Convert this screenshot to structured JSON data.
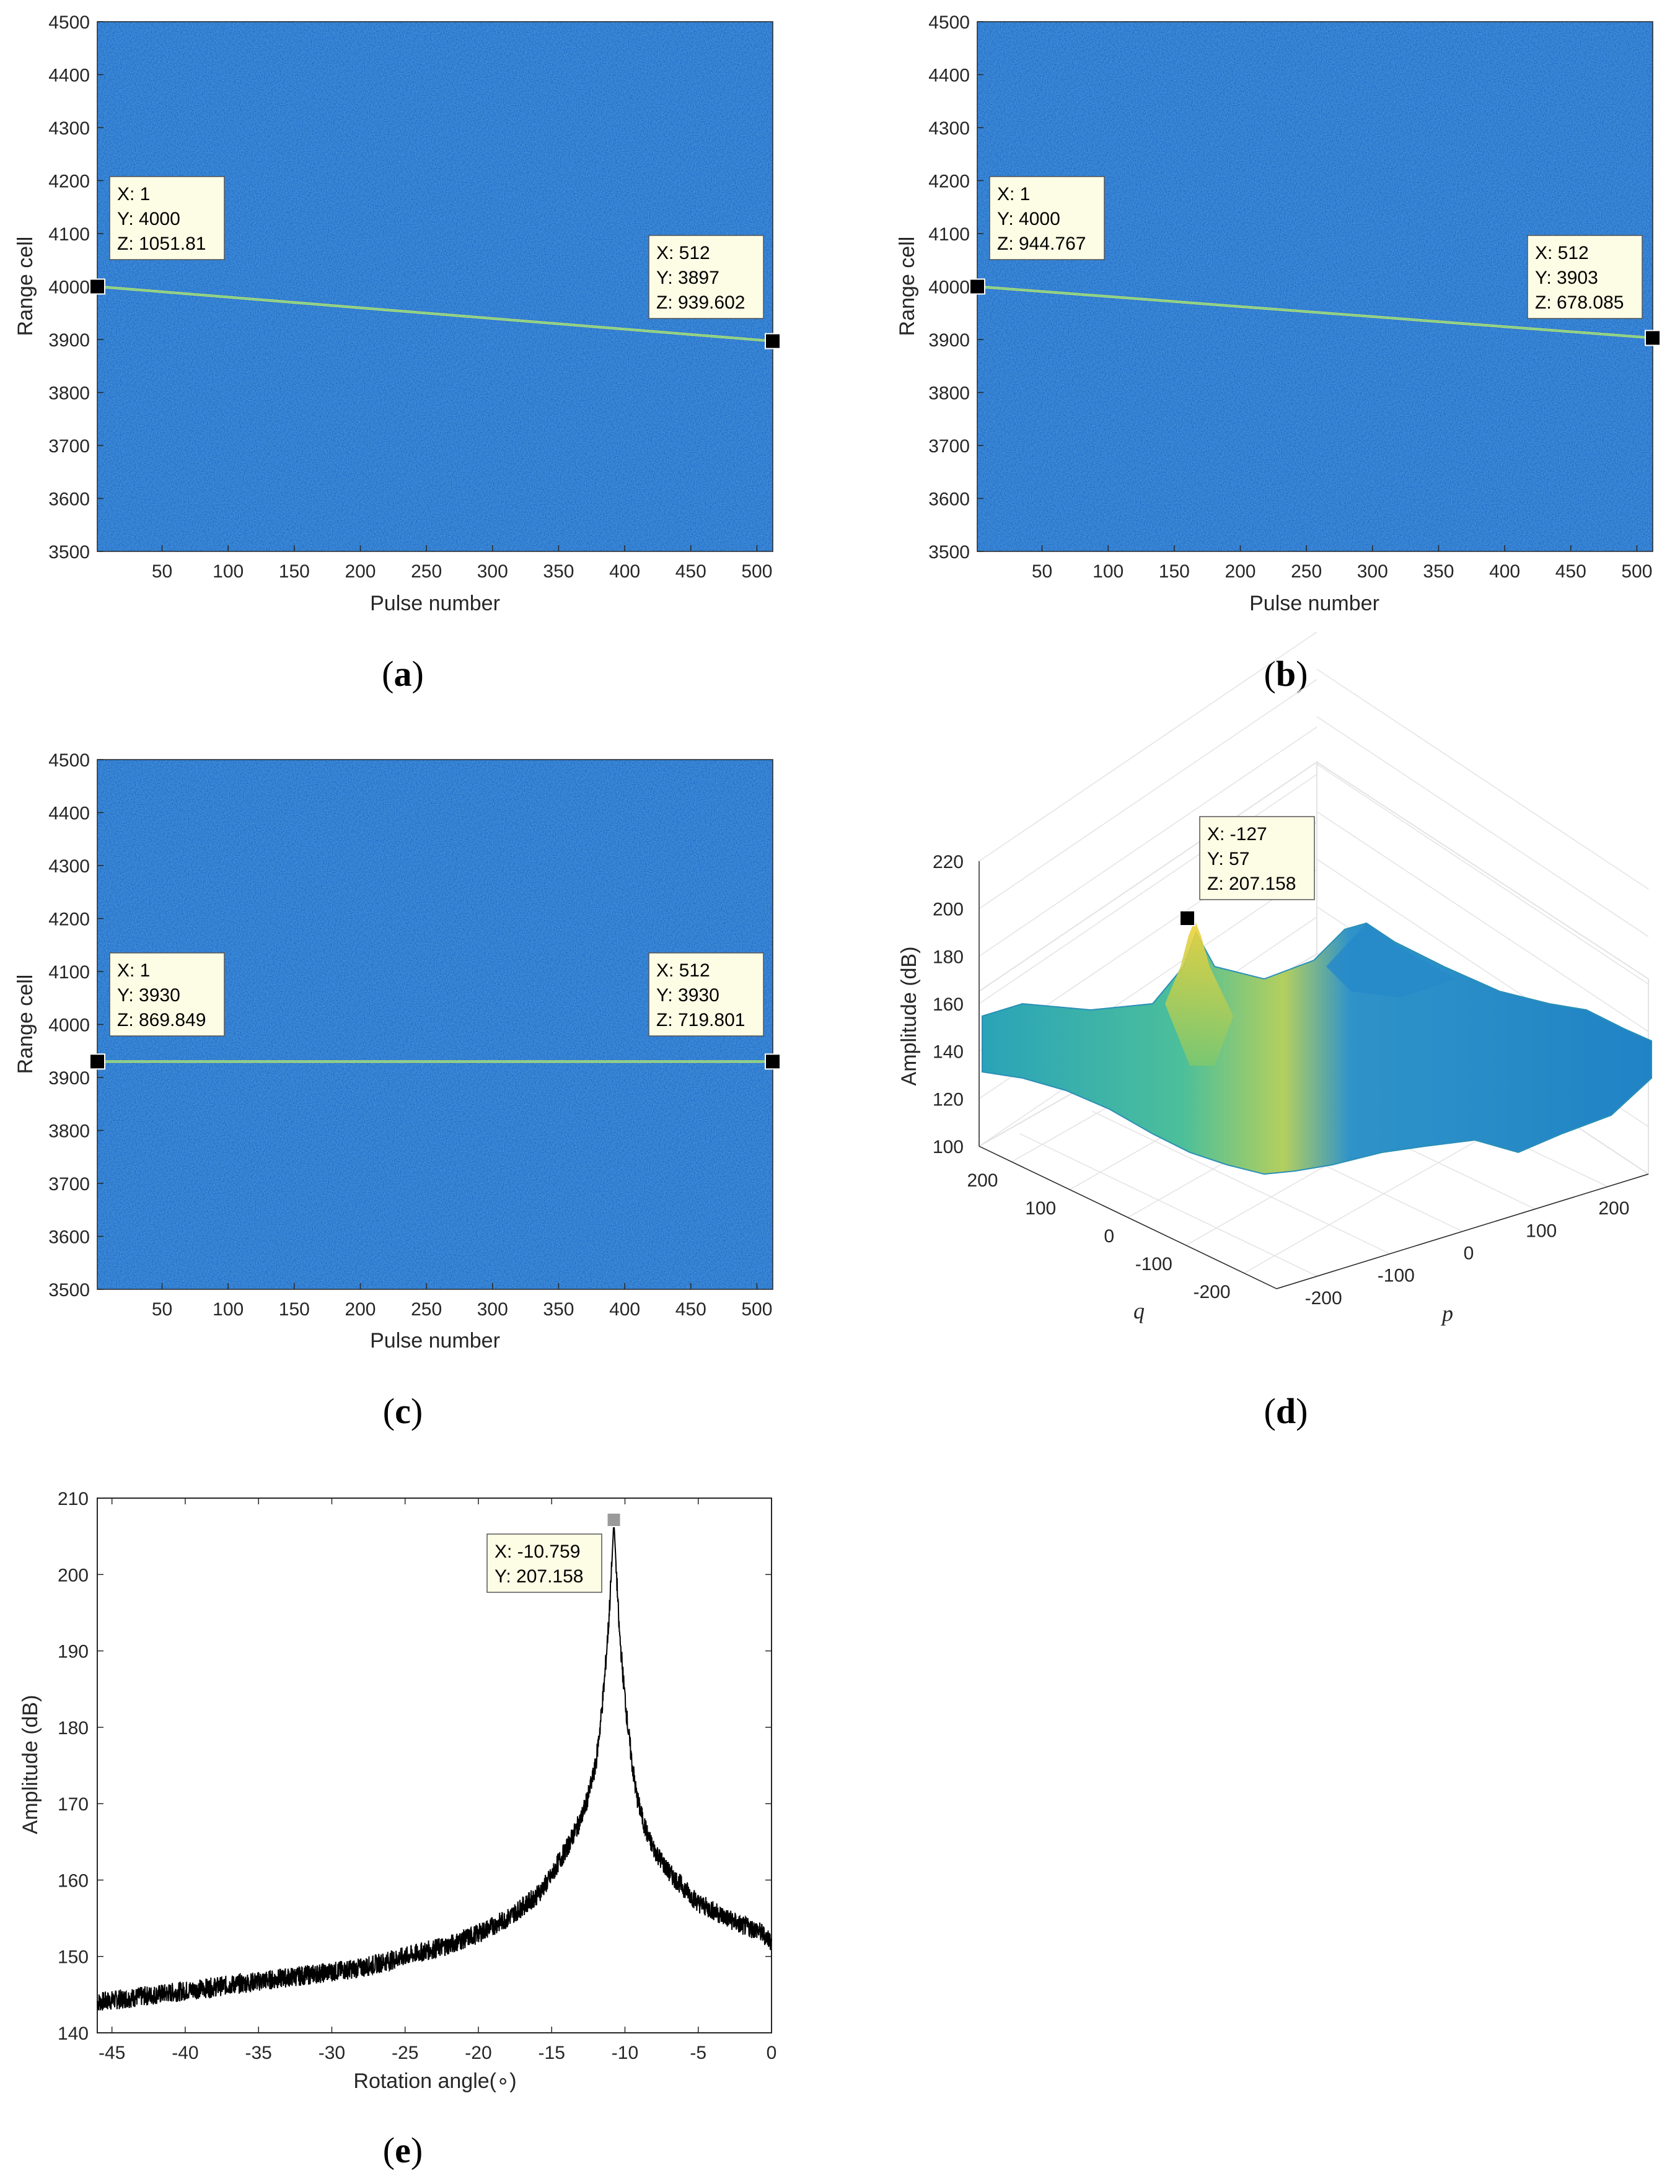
{
  "captions": [
    "a",
    "b",
    "c",
    "d",
    "e"
  ],
  "chart_data": [
    {
      "id": "a",
      "type": "heatmap",
      "title": "",
      "xlabel": "Pulse number",
      "ylabel": "Range cell",
      "xlim": [
        1,
        512
      ],
      "ylim": [
        3500,
        4500
      ],
      "xticks": [
        50,
        100,
        150,
        200,
        250,
        300,
        350,
        400,
        450,
        500
      ],
      "yticks": [
        3500,
        3600,
        3700,
        3800,
        3900,
        4000,
        4100,
        4200,
        4300,
        4400,
        4500
      ],
      "trajectory": {
        "x": [
          1,
          512
        ],
        "y": [
          4000,
          3897
        ]
      },
      "datatips": [
        {
          "X": 1,
          "Y": 4000,
          "Z": 1051.81,
          "lines": [
            "X: 1",
            "Y: 4000",
            "Z: 1051.81"
          ]
        },
        {
          "X": 512,
          "Y": 3897,
          "Z": 939.602,
          "lines": [
            "X: 512",
            "Y: 3897",
            "Z: 939.602"
          ]
        }
      ]
    },
    {
      "id": "b",
      "type": "heatmap",
      "title": "",
      "xlabel": "Pulse number",
      "ylabel": "Range cell",
      "xlim": [
        1,
        512
      ],
      "ylim": [
        3500,
        4500
      ],
      "xticks": [
        50,
        100,
        150,
        200,
        250,
        300,
        350,
        400,
        450,
        500
      ],
      "yticks": [
        3500,
        3600,
        3700,
        3800,
        3900,
        4000,
        4100,
        4200,
        4300,
        4400,
        4500
      ],
      "trajectory": {
        "x": [
          1,
          512
        ],
        "y": [
          4000,
          3903
        ]
      },
      "datatips": [
        {
          "X": 1,
          "Y": 4000,
          "Z": 944.767,
          "lines": [
            "X: 1",
            "Y: 4000",
            "Z: 944.767"
          ]
        },
        {
          "X": 512,
          "Y": 3903,
          "Z": 678.085,
          "lines": [
            "X: 512",
            "Y: 3903",
            "Z: 678.085"
          ]
        }
      ]
    },
    {
      "id": "c",
      "type": "heatmap",
      "title": "",
      "xlabel": "Pulse number",
      "ylabel": "Range cell",
      "xlim": [
        1,
        512
      ],
      "ylim": [
        3500,
        4500
      ],
      "xticks": [
        50,
        100,
        150,
        200,
        250,
        300,
        350,
        400,
        450,
        500
      ],
      "yticks": [
        3500,
        3600,
        3700,
        3800,
        3900,
        4000,
        4100,
        4200,
        4300,
        4400,
        4500
      ],
      "trajectory": {
        "x": [
          1,
          512
        ],
        "y": [
          3930,
          3930
        ]
      },
      "datatips": [
        {
          "X": 1,
          "Y": 3930,
          "Z": 869.849,
          "lines": [
            "X: 1",
            "Y: 3930",
            "Z: 869.849"
          ]
        },
        {
          "X": 512,
          "Y": 3930,
          "Z": 719.801,
          "lines": [
            "X: 512",
            "Y: 3930",
            "Z: 719.801"
          ]
        }
      ]
    },
    {
      "id": "d",
      "type": "surface3d",
      "title": "",
      "xlabel": "p",
      "ylabel": "q",
      "zlabel": "Amplitude (dB)",
      "plim": [
        -256,
        256
      ],
      "qlim": [
        -256,
        256
      ],
      "zlim": [
        100,
        220
      ],
      "pticks": [
        -200,
        -100,
        0,
        100,
        200
      ],
      "qticks": [
        -200,
        -100,
        0,
        100,
        200
      ],
      "zticks": [
        100,
        120,
        140,
        160,
        180,
        200,
        220
      ],
      "peak": {
        "p": -127,
        "q": 57,
        "z": 207.158
      },
      "datatips": [
        {
          "X": -127,
          "Y": 57,
          "Z": 207.158,
          "lines": [
            "X: -127",
            "Y: 57",
            "Z: 207.158"
          ]
        }
      ]
    },
    {
      "id": "e",
      "type": "line",
      "title": "",
      "xlabel": "Rotation angle(∘)",
      "ylabel": "Amplitude (dB)",
      "xlim": [
        -46,
        0
      ],
      "ylim": [
        140,
        210
      ],
      "xticks": [
        -45,
        -40,
        -35,
        -30,
        -25,
        -20,
        -15,
        -10,
        -5,
        0
      ],
      "yticks": [
        140,
        150,
        160,
        170,
        180,
        190,
        200,
        210
      ],
      "series": [
        {
          "name": "amplitude",
          "x": [
            -46,
            -44,
            -42,
            -40,
            -38,
            -36,
            -34,
            -32,
            -30,
            -28,
            -26,
            -24,
            -22,
            -20,
            -18,
            -17,
            -16,
            -15,
            -14.5,
            -14,
            -13.5,
            -13,
            -12.5,
            -12,
            -11.7,
            -11.4,
            -11.1,
            -10.9,
            -10.759,
            -10.6,
            -10.4,
            -10.1,
            -9.8,
            -9.5,
            -9.2,
            -8.8,
            -8.4,
            -8,
            -7.5,
            -7,
            -6.5,
            -6,
            -5.5,
            -5,
            -4,
            -3,
            -2,
            -1,
            -0.3,
            0
          ],
          "y": [
            144,
            144.5,
            145,
            145.5,
            146,
            146.5,
            147,
            147.5,
            148,
            148.5,
            149.5,
            150.5,
            151.5,
            153,
            155,
            156.5,
            158,
            160.5,
            162.5,
            164,
            166,
            168,
            171,
            175,
            180,
            186,
            194,
            201,
            207.158,
            201,
            193,
            186,
            180,
            175,
            171,
            168,
            165.5,
            164,
            162.5,
            161,
            160,
            159,
            158,
            157,
            156,
            155,
            154,
            153.5,
            152.5,
            152
          ]
        }
      ],
      "datatips": [
        {
          "X": -10.759,
          "Y": 207.158,
          "lines": [
            "X: -10.759",
            "Y: 207.158"
          ]
        }
      ]
    }
  ]
}
